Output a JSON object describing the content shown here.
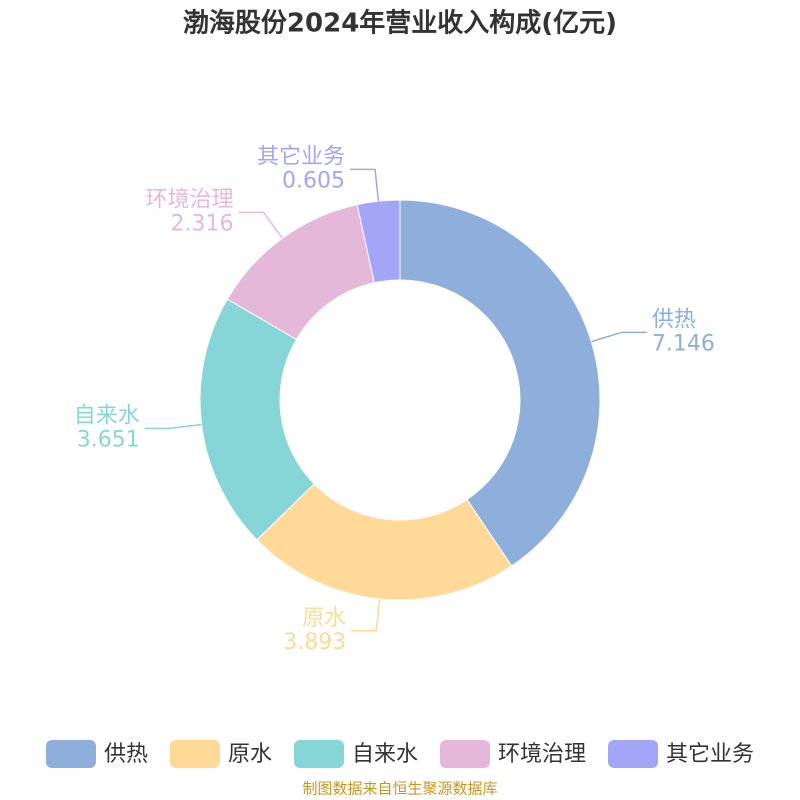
{
  "chart_data": {
    "type": "pie",
    "title": "渤海股份2024年营业收入构成(亿元)",
    "categories": [
      "供热",
      "原水",
      "自来水",
      "环境治理",
      "其它业务"
    ],
    "values": [
      7.146,
      3.893,
      3.651,
      2.316,
      0.605
    ],
    "colors": [
      "#8eaedb",
      "#fed998",
      "#87d6d7",
      "#e5b8da",
      "#a3a5f6"
    ],
    "legend": "bottom",
    "source": "制图数据来自恒生聚源数据库"
  }
}
